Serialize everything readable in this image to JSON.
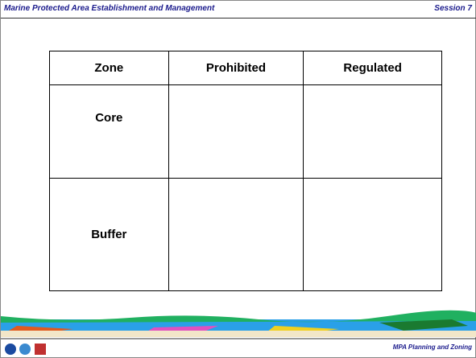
{
  "header": {
    "title": "Marine Protected Area Establishment and Management",
    "session": "Session 7"
  },
  "table": {
    "columns": [
      "Zone",
      "Prohibited",
      "Regulated"
    ],
    "rows": [
      "Core",
      "Buffer"
    ]
  },
  "footer": {
    "text": "MPA Planning and Zoning"
  }
}
